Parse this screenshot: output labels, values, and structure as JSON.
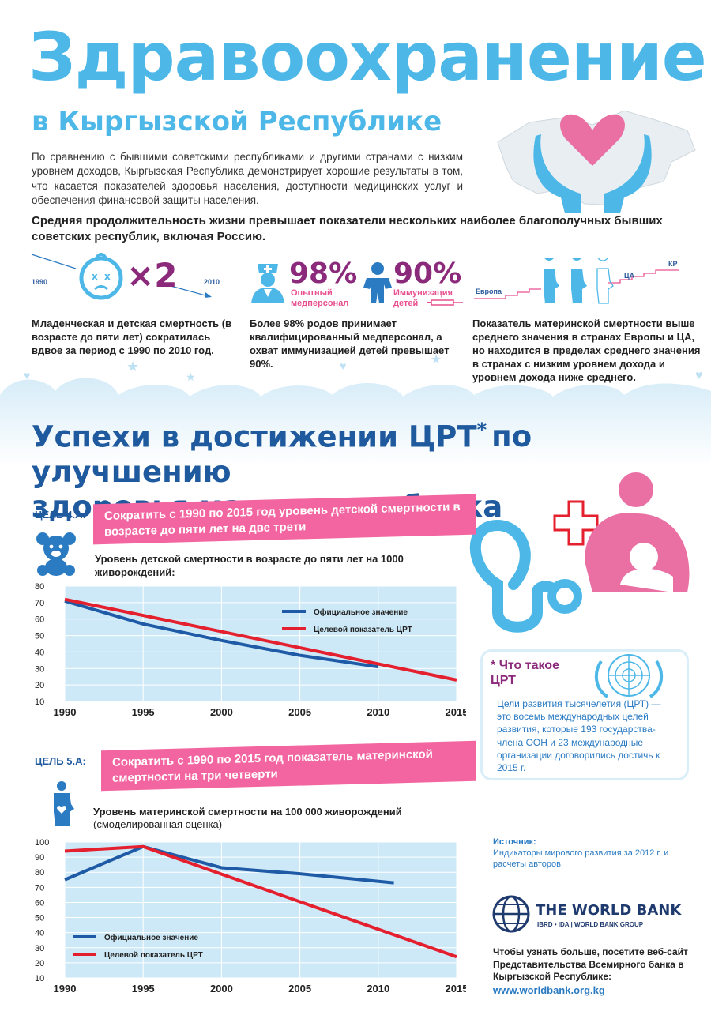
{
  "header": {
    "title": "Здравоохранение",
    "subtitle": "в Кыргызской Республике",
    "intro": "По сравнению с бывшими советскими республиками и другими странами с низким уровнем доходов, Кыргызская Республика демонстрирует хорошие результаты в том, что касается показателей здоровья населения, доступности медицинских услуг и обеспечения финансовой защиты населения.",
    "lead": "Средняя продолжительность жизни превышает показатели нескольких наиболее благополучных бывших советских республик, включая Россию."
  },
  "stats": {
    "child": {
      "year_start": "1990",
      "year_end": "2010",
      "multiplier": "×2",
      "text": "Младенческая и детская смертность (в возрасте до пяти лет) сократилась вдвое за период с 1990 по 2010 год."
    },
    "staff": {
      "pct": "98%",
      "caption": "Опытный медперсонал",
      "text": "Более 98% родов принимает квалифицированный медперсонал, а охват иммунизацией детей превышает 90%."
    },
    "immun": {
      "pct": "90%",
      "caption": "Иммунизация детей"
    },
    "maternal": {
      "label_europe": "Европа",
      "label_ca": "ЦА",
      "label_kr": "КР",
      "text": "Показатель материнской смертности выше среднего значения в странах Европы и ЦА, но находится в пределах среднего значения в странах с низким уровнем дохода и уровнем дохода ниже среднего."
    }
  },
  "section": {
    "title_line1": "Успехи в достижении ЦРТ",
    "asterisk": "*",
    "title_line1b": "по улучшению",
    "title_line2": "здоровья матери и ребенка"
  },
  "goal4": {
    "label": "ЦЕЛЬ 4.А:",
    "banner": "Сократить с 1990 по 2015 год уровень детской смертности в возрасте до пяти лет на две трети",
    "chart_title": "Уровень детской смертности в возрасте до пяти лет на 1000 живорождений:"
  },
  "goal5": {
    "label": "ЦЕЛЬ 5.А:",
    "banner": "Сократить с 1990 по 2015 год показатель материнской смертности на три четверти",
    "chart_title": "Уровень материнской смертности на 100 000 живорождений",
    "chart_subtitle": "(смоделированная оценка)"
  },
  "chart_data": [
    {
      "type": "line",
      "ylim": [
        10,
        80
      ],
      "yticks": [
        10,
        20,
        30,
        40,
        50,
        60,
        70,
        80
      ],
      "xticks": [
        "1990",
        "1995",
        "2000",
        "2005",
        "2010",
        "2015"
      ],
      "xlim": [
        1990,
        2015
      ],
      "grid": true,
      "legend": "top-right",
      "series": [
        {
          "name": "Официальное значение",
          "color": "#1f5aa6",
          "x": [
            1990,
            1995,
            2000,
            2005,
            2010
          ],
          "y": [
            71,
            57,
            47,
            38,
            31
          ]
        },
        {
          "name": "Целевой показатель ЦРТ",
          "color": "#e5202e",
          "x": [
            1990,
            2015
          ],
          "y": [
            72,
            23
          ]
        }
      ]
    },
    {
      "type": "line",
      "ylim": [
        10,
        100
      ],
      "yticks": [
        10,
        20,
        30,
        40,
        50,
        60,
        70,
        80,
        90,
        100
      ],
      "xticks": [
        "1990",
        "1995",
        "2000",
        "2005",
        "2010",
        "2015"
      ],
      "xlim": [
        1990,
        2015
      ],
      "grid": true,
      "legend": "bottom-left",
      "series": [
        {
          "name": "Официальное значение",
          "color": "#1f5aa6",
          "x": [
            1990,
            1995,
            2000,
            2005,
            2011
          ],
          "y": [
            75,
            97,
            83,
            79,
            73
          ]
        },
        {
          "name": "Целевой показатель ЦРТ",
          "color": "#e5202e",
          "x": [
            1990,
            1995,
            2015
          ],
          "y": [
            94,
            97,
            24
          ]
        }
      ]
    }
  ],
  "mdg": {
    "asterisk": "*",
    "title": "Что такое ЦРТ",
    "text": "Цели развития тысячелетия (ЦРТ) — это восемь международных целей развития, которые 193 государства-члена ООН и 23 международные организации договорились достичь к 2015 г."
  },
  "source": {
    "heading": "Источник:",
    "text": "Индикаторы мирового развития за 2012 г. и расчеты авторов."
  },
  "worldbank": {
    "name": "THE WORLD BANK",
    "sub": "IBRD • IDA | WORLD BANK GROUP",
    "more": "Чтобы узнать больше, посетите веб-сайт Представительства Всемирного банка в Кыргызской Республике:",
    "url": "www.worldbank.org.kg"
  },
  "colors": {
    "light_blue": "#4db8e8",
    "dark_blue": "#1f5a9e",
    "pink": "#f265a0",
    "purple": "#8b2a7b",
    "chart_bg": "#cde9f7"
  }
}
